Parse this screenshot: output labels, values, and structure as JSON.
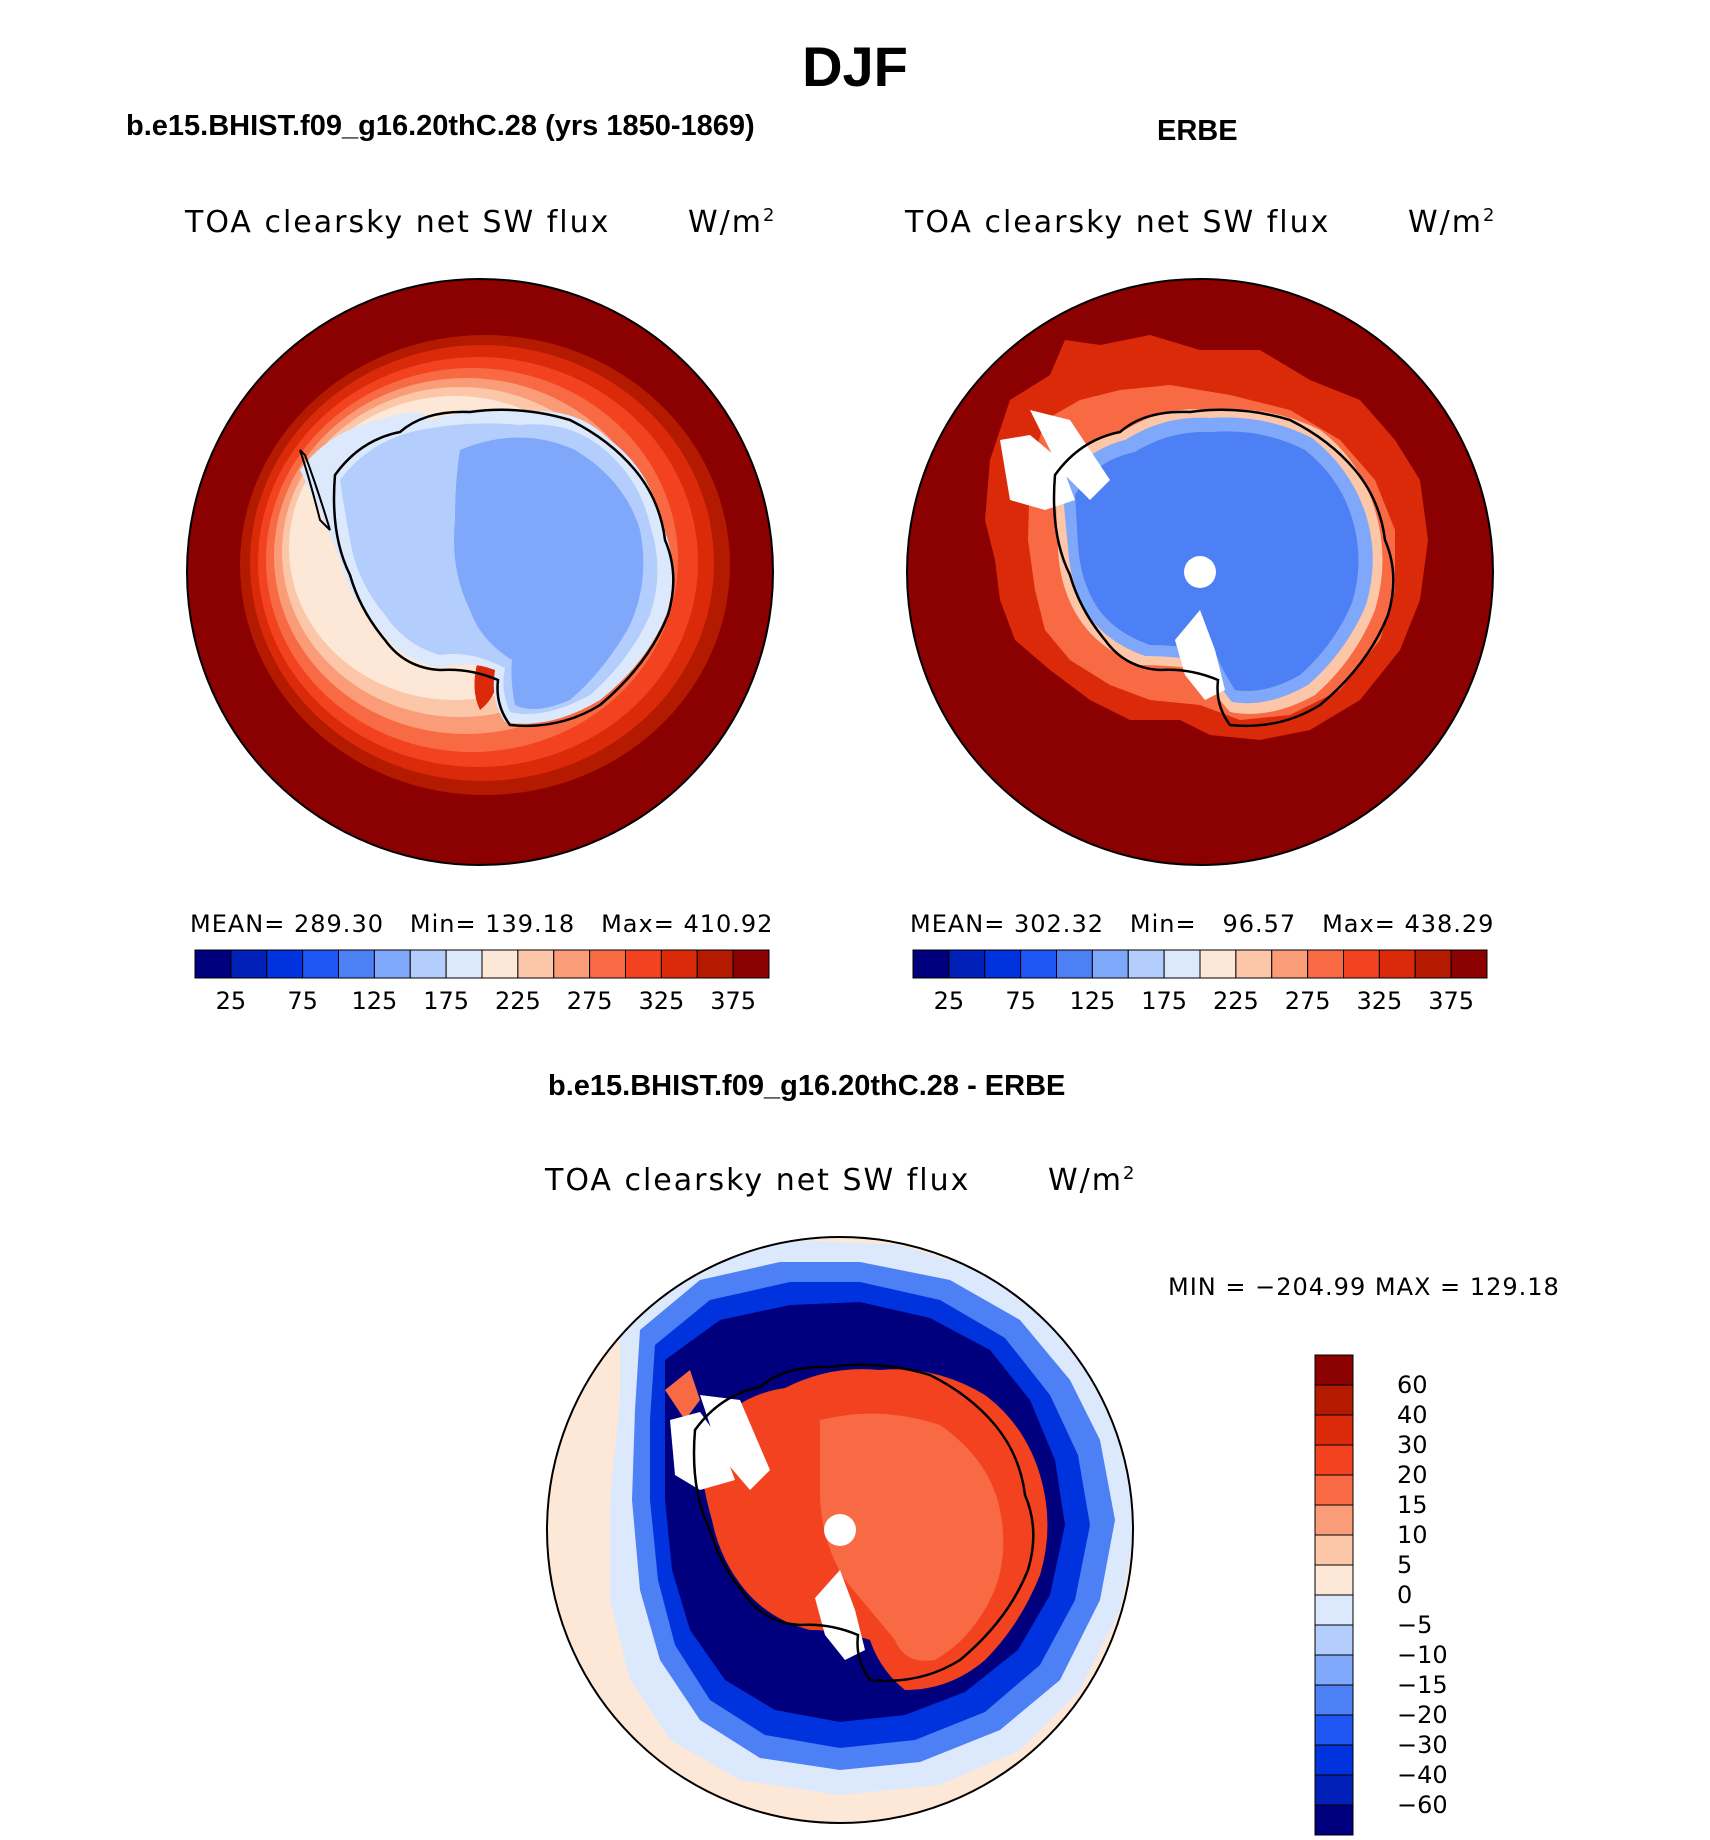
{
  "title": "DJF",
  "panels": [
    {
      "id": "model",
      "heading": "b.e15.BHIST.f09_g16.20thC.28 (yrs 1850-1869)",
      "variable": "TOA clearsky net SW flux",
      "units_base": "W/m",
      "units_exp": "2",
      "stats": {
        "mean_label": "MEAN=",
        "mean": "289.30",
        "min_label": "Min=",
        "min": "139.18",
        "max_label": "Max=",
        "max": "410.92"
      }
    },
    {
      "id": "obs",
      "heading": "ERBE",
      "variable": "TOA clearsky net SW flux",
      "units_base": "W/m",
      "units_exp": "2",
      "stats": {
        "mean_label": "MEAN=",
        "mean": "302.32",
        "min_label": "Min=",
        "min": "96.57",
        "max_label": "Max=",
        "max": "438.29"
      }
    },
    {
      "id": "diff",
      "heading": "b.e15.BHIST.f09_g16.20thC.28 - ERBE",
      "variable": "TOA clearsky net SW flux",
      "units_base": "W/m",
      "units_exp": "2",
      "stats": {
        "min_label": "MIN =",
        "min": "−204.99",
        "max_label": "MAX =",
        "max": "129.18"
      }
    }
  ],
  "colorbar_abs": {
    "colors": [
      "#00007f",
      "#0020b8",
      "#0033dd",
      "#1f55f2",
      "#4d7ff5",
      "#80a8fa",
      "#b3cdfc",
      "#dce9fd",
      "#fde8d8",
      "#fcc6a8",
      "#fa9c78",
      "#f86a44",
      "#f2421f",
      "#db2a0a",
      "#b31a00",
      "#8b0000"
    ],
    "labels": [
      "25",
      "75",
      "125",
      "175",
      "225",
      "275",
      "325",
      "375"
    ]
  },
  "colorbar_diff": {
    "colors": [
      "#00007f",
      "#0020b8",
      "#0033dd",
      "#1f55f2",
      "#4d7ff5",
      "#80a8fa",
      "#b3cdfc",
      "#dce9fd",
      "#fde8d8",
      "#fcc6a8",
      "#fa9c78",
      "#f86a44",
      "#f2421f",
      "#db2a0a",
      "#b31a00",
      "#8b0000"
    ],
    "labels": [
      "60",
      "40",
      "30",
      "20",
      "15",
      "10",
      "5",
      "0",
      "−5",
      "−10",
      "−15",
      "−20",
      "−30",
      "−40",
      "−60"
    ]
  },
  "map_colors": {
    "ocean_outer": "#8b0000",
    "ring_1": "#b31a00",
    "ring_2": "#db2a0a",
    "ring_3": "#f2421f",
    "ring_4": "#f86a44",
    "ring_5": "#fa9c78",
    "ring_6": "#fcc6a8",
    "ring_7": "#fde8d8",
    "ice_light": "#dce9fd",
    "ice_mid": "#b3cdfc",
    "ice_core": "#80a8fa",
    "obs_core": "#4d7ff5",
    "diff_ocean": "#fde8d8",
    "diff_ring_a": "#dce9fd",
    "diff_ring_b": "#1f55f2",
    "diff_ring_c": "#00007f",
    "diff_land": "#f2421f",
    "diff_land_b": "#f86a44",
    "missing": "#ffffff"
  }
}
